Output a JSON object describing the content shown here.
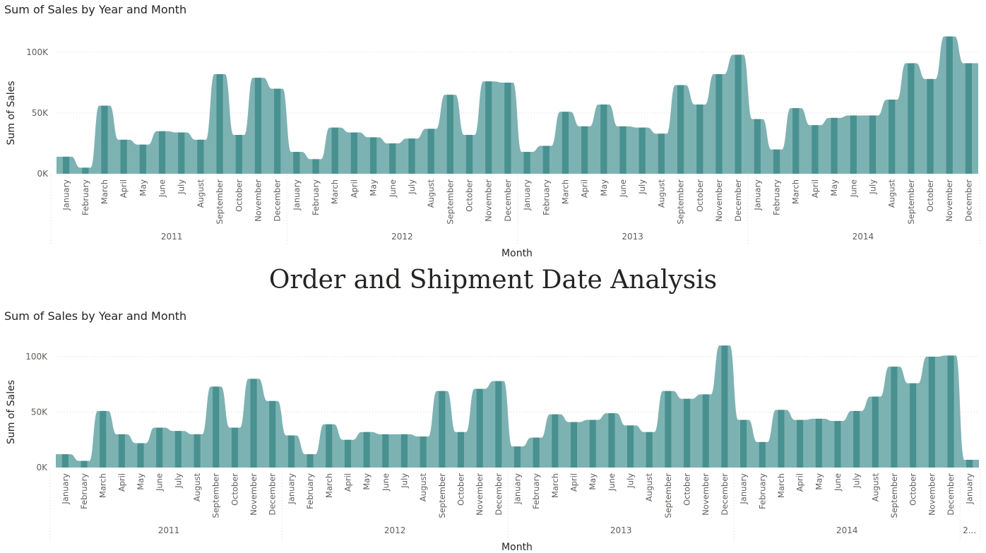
{
  "page": {
    "heading": "Order and Shipment Date Analysis"
  },
  "colors": {
    "area_fill": "#7db2b3",
    "bar_fill": "#489190",
    "gridline": "#d7d7d7",
    "text": "#252423",
    "axis_text": "#605e5c"
  },
  "chart_data": [
    {
      "type": "area",
      "title": "Sum of Sales by Year and Month",
      "xlabel": "Month",
      "ylabel": "Sum of Sales",
      "ylim": [
        0,
        100000
      ],
      "yticks": [
        {
          "value": 0,
          "label": "0K"
        },
        {
          "value": 50000,
          "label": "50K"
        },
        {
          "value": 100000,
          "label": "100K"
        }
      ],
      "grid": true,
      "groups": [
        {
          "label": "2011",
          "months": [
            "January",
            "February",
            "March",
            "April",
            "May",
            "June",
            "July",
            "August",
            "September",
            "October",
            "November",
            "December"
          ]
        },
        {
          "label": "2012",
          "months": [
            "January",
            "February",
            "March",
            "April",
            "May",
            "June",
            "July",
            "August",
            "September",
            "October",
            "November",
            "December"
          ]
        },
        {
          "label": "2013",
          "months": [
            "January",
            "February",
            "March",
            "April",
            "May",
            "June",
            "July",
            "August",
            "September",
            "October",
            "November",
            "December"
          ]
        },
        {
          "label": "2014",
          "months": [
            "January",
            "February",
            "March",
            "April",
            "May",
            "June",
            "July",
            "August",
            "September",
            "October",
            "November",
            "December"
          ]
        }
      ],
      "values": [
        14000,
        5000,
        56000,
        28000,
        24000,
        35000,
        34000,
        28000,
        82000,
        32000,
        79000,
        70000,
        18000,
        12000,
        38000,
        34000,
        30000,
        25000,
        29000,
        37000,
        65000,
        32000,
        76000,
        75000,
        18000,
        23000,
        51000,
        39000,
        57000,
        39000,
        38000,
        33000,
        73000,
        57000,
        82000,
        98000,
        45000,
        20000,
        54000,
        40000,
        46000,
        48000,
        48000,
        61000,
        91000,
        78000,
        113000,
        91000
      ]
    },
    {
      "type": "area",
      "title": "Sum of Sales by Year and Month",
      "xlabel": "Month",
      "ylabel": "Sum of Sales",
      "ylim": [
        0,
        100000
      ],
      "yticks": [
        {
          "value": 0,
          "label": "0K"
        },
        {
          "value": 50000,
          "label": "50K"
        },
        {
          "value": 100000,
          "label": "100K"
        }
      ],
      "grid": true,
      "groups": [
        {
          "label": "2011",
          "months": [
            "January",
            "February",
            "March",
            "April",
            "May",
            "June",
            "July",
            "August",
            "September",
            "October",
            "November",
            "December"
          ]
        },
        {
          "label": "2012",
          "months": [
            "January",
            "February",
            "March",
            "April",
            "May",
            "June",
            "July",
            "August",
            "September",
            "October",
            "November",
            "December"
          ]
        },
        {
          "label": "2013",
          "months": [
            "January",
            "February",
            "March",
            "April",
            "May",
            "June",
            "July",
            "August",
            "September",
            "October",
            "November",
            "December"
          ]
        },
        {
          "label": "2014",
          "months": [
            "January",
            "February",
            "March",
            "April",
            "May",
            "June",
            "July",
            "August",
            "September",
            "October",
            "November",
            "December"
          ]
        },
        {
          "label": "2...",
          "months": [
            "January"
          ]
        }
      ],
      "values": [
        12000,
        6000,
        51000,
        30000,
        22000,
        36000,
        33000,
        30000,
        73000,
        36000,
        80000,
        60000,
        29000,
        12000,
        39000,
        25000,
        32000,
        30000,
        30000,
        28000,
        69000,
        32000,
        71000,
        78000,
        19000,
        27000,
        48000,
        41000,
        43000,
        49000,
        38000,
        32000,
        69000,
        62000,
        66000,
        110000,
        43000,
        23000,
        52000,
        43000,
        44000,
        42000,
        51000,
        64000,
        91000,
        76000,
        100000,
        101000,
        7000
      ]
    }
  ]
}
